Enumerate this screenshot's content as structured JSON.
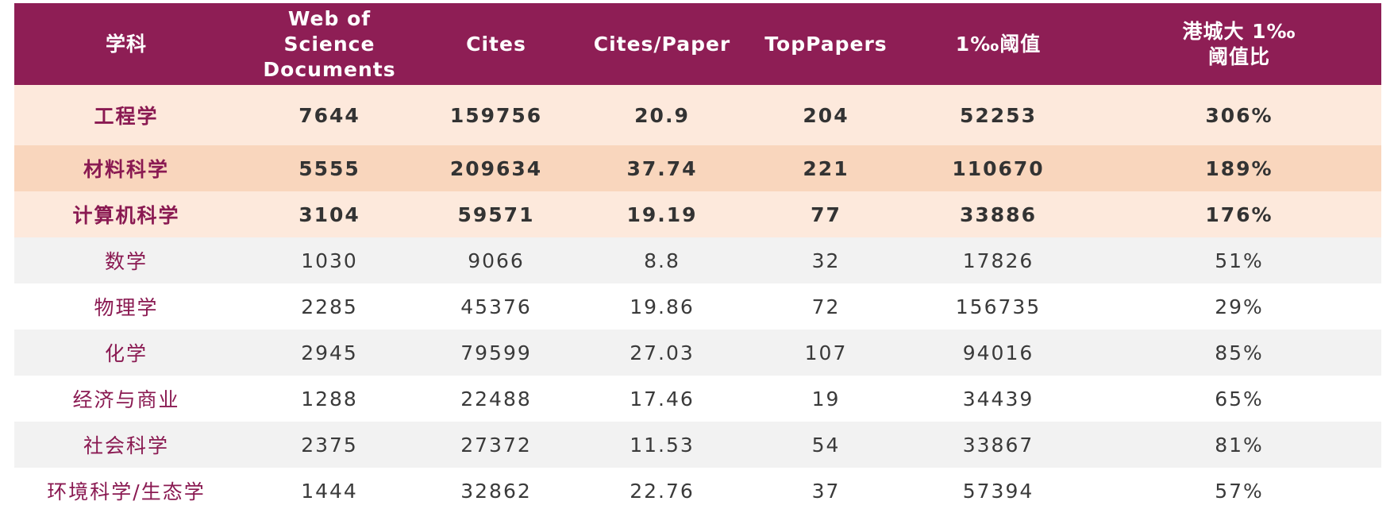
{
  "table": {
    "headers": [
      [
        "学科"
      ],
      [
        "Web of Science",
        "Documents"
      ],
      [
        "Cites"
      ],
      [
        "Cites/Paper"
      ],
      [
        "TopPapers"
      ],
      [
        "1‰阈值"
      ],
      [
        "港城大 1‰",
        "阈值比"
      ]
    ],
    "rows": [
      {
        "cells": [
          "工程学",
          "7644",
          "159756",
          "20.9",
          "204",
          "52253",
          "306%"
        ],
        "highlight": true,
        "bg": "bg-peach"
      },
      {
        "cells": [
          "材料科学",
          "5555",
          "209634",
          "37.74",
          "221",
          "110670",
          "189%"
        ],
        "highlight": true,
        "bg": "bg-tan"
      },
      {
        "cells": [
          "计算机科学",
          "3104",
          "59571",
          "19.19",
          "77",
          "33886",
          "176%"
        ],
        "highlight": true,
        "bg": "bg-peach"
      },
      {
        "cells": [
          "数学",
          "1030",
          "9066",
          "8.8",
          "32",
          "17826",
          "51%"
        ],
        "highlight": false,
        "bg": "bg-grey"
      },
      {
        "cells": [
          "物理学",
          "2285",
          "45376",
          "19.86",
          "72",
          "156735",
          "29%"
        ],
        "highlight": false,
        "bg": "bg-white"
      },
      {
        "cells": [
          "化学",
          "2945",
          "79599",
          "27.03",
          "107",
          "94016",
          "85%"
        ],
        "highlight": false,
        "bg": "bg-grey"
      },
      {
        "cells": [
          "经济与商业",
          "1288",
          "22488",
          "17.46",
          "19",
          "34439",
          "65%"
        ],
        "highlight": false,
        "bg": "bg-white"
      },
      {
        "cells": [
          "社会科学",
          "2375",
          "27372",
          "11.53",
          "54",
          "33867",
          "81%"
        ],
        "highlight": false,
        "bg": "bg-grey"
      },
      {
        "cells": [
          "环境科学/生态学",
          "1444",
          "32862",
          "22.76",
          "37",
          "57394",
          "57%"
        ],
        "highlight": false,
        "bg": "bg-white"
      }
    ]
  },
  "colors": {
    "header_bg": "#8e1e55",
    "header_text": "#ffffff",
    "subject_text": "#8a1a52",
    "row_peach": "#fde9dc",
    "row_tan": "#f9d6bd",
    "row_grey": "#f2f2f2"
  }
}
